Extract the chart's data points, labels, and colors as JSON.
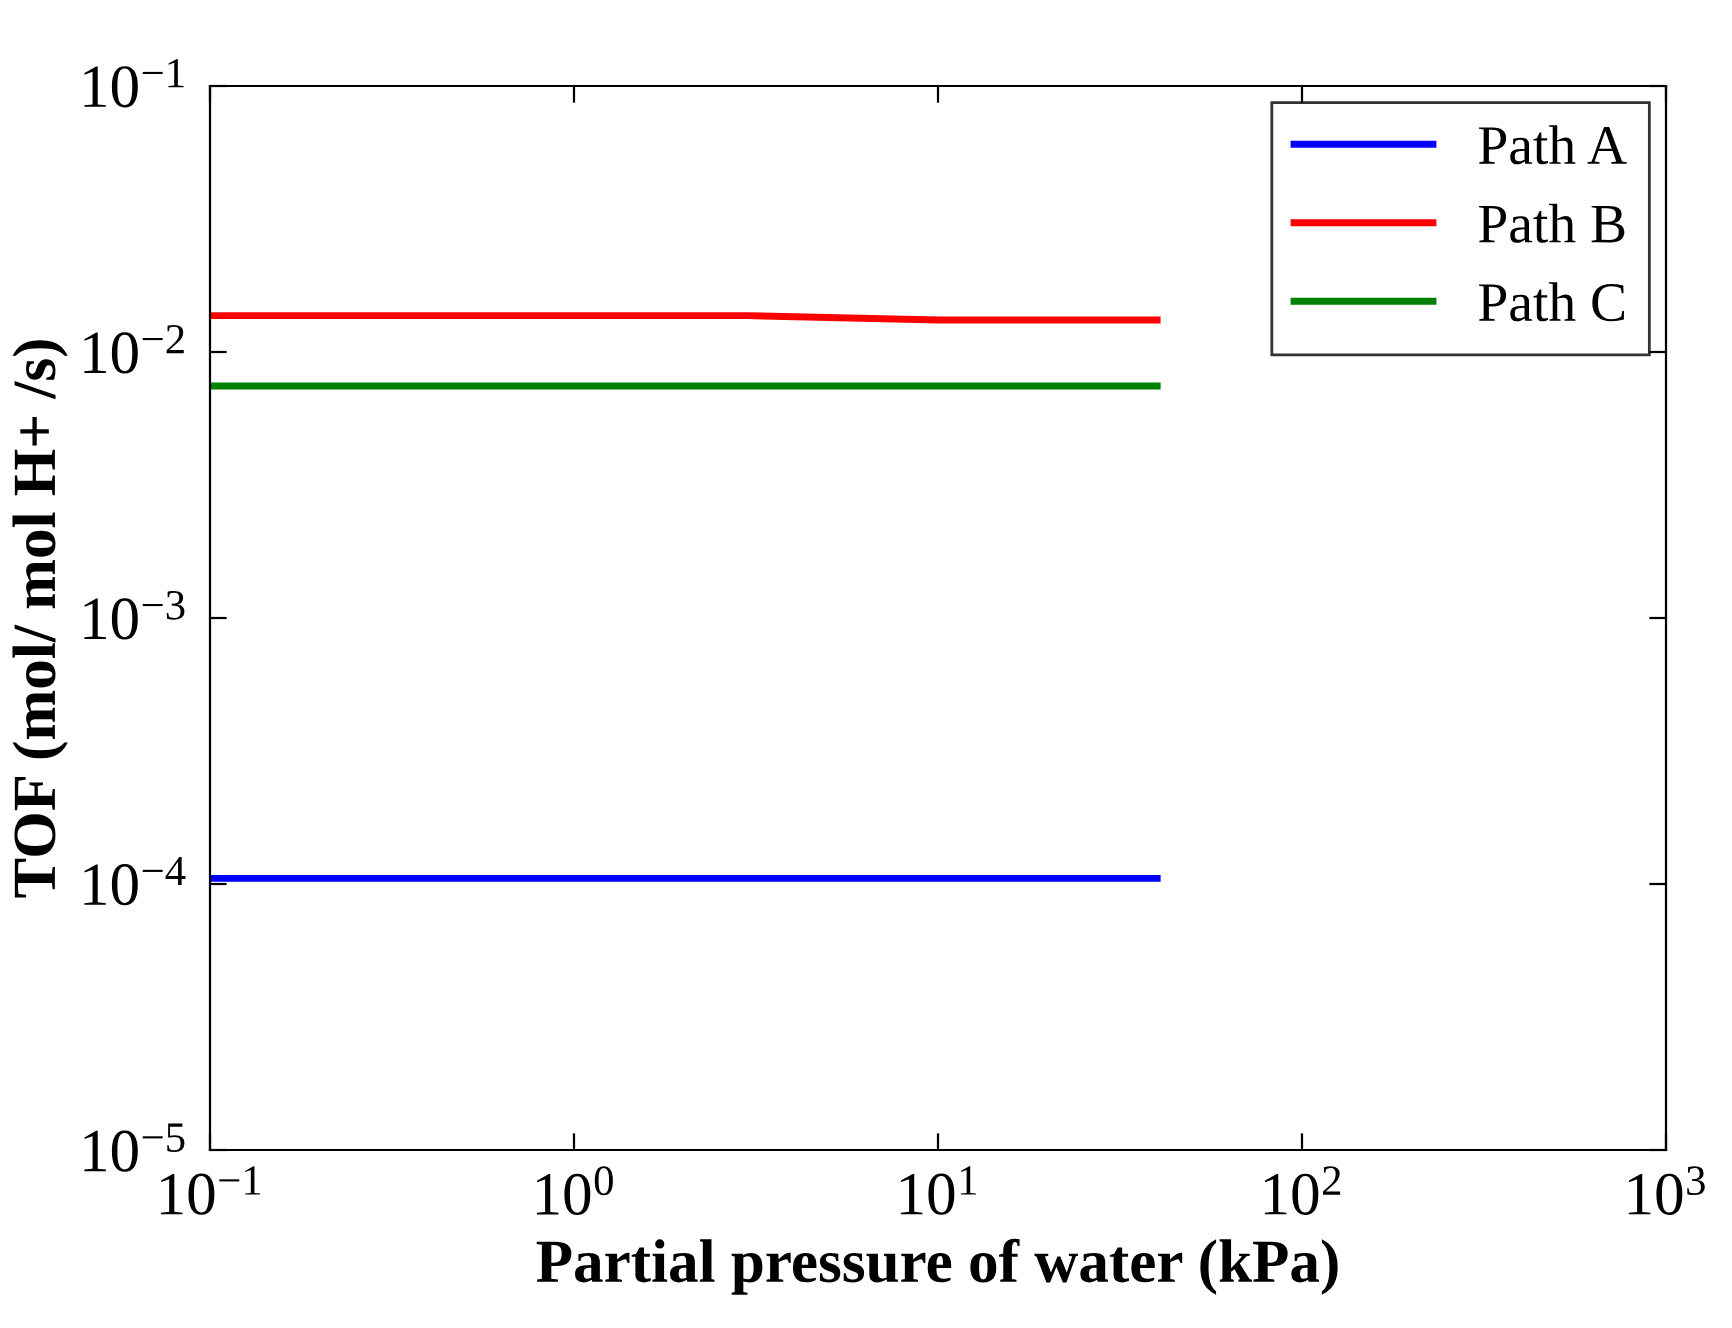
{
  "chart_data": {
    "type": "line",
    "xlabel": "Partial pressure of water (kPa)",
    "ylabel": "TOF (mol/ mol H+ /s)",
    "log": "xy",
    "xlim": [
      0.1,
      1000
    ],
    "ylim": [
      1e-05,
      0.1
    ],
    "xticks": [
      {
        "value": 0.1,
        "label": "10$^{−1}$"
      },
      {
        "value": 1,
        "label": "10$^{0}$"
      },
      {
        "value": 10,
        "label": "10$^{1}$"
      },
      {
        "value": 100,
        "label": "10$^{2}$"
      },
      {
        "value": 1000,
        "label": "10$^{3}$"
      }
    ],
    "yticks": [
      {
        "value": 1e-05,
        "label": "10$^{−5}$"
      },
      {
        "value": 0.0001,
        "label": "10$^{−4}$"
      },
      {
        "value": 0.001,
        "label": "10$^{−3}$"
      },
      {
        "value": 0.01,
        "label": "10$^{−2}$"
      },
      {
        "value": 0.1,
        "label": "10$^{−1}$"
      }
    ],
    "grid": false,
    "legend": "top right",
    "line_style": "solid",
    "marker": "none",
    "series": [
      {
        "name": "Path A",
        "color": "#0000ff",
        "x": [
          0.1,
          40
        ],
        "values": [
          0.000105,
          0.000105
        ]
      },
      {
        "name": "Path B",
        "color": "#ff0000",
        "x": [
          0.1,
          3,
          10,
          40
        ],
        "values": [
          0.0137,
          0.0137,
          0.0132,
          0.0132
        ]
      },
      {
        "name": "Path C",
        "color": "#008000",
        "x": [
          0.1,
          40
        ],
        "values": [
          0.00745,
          0.00745
        ]
      }
    ]
  }
}
